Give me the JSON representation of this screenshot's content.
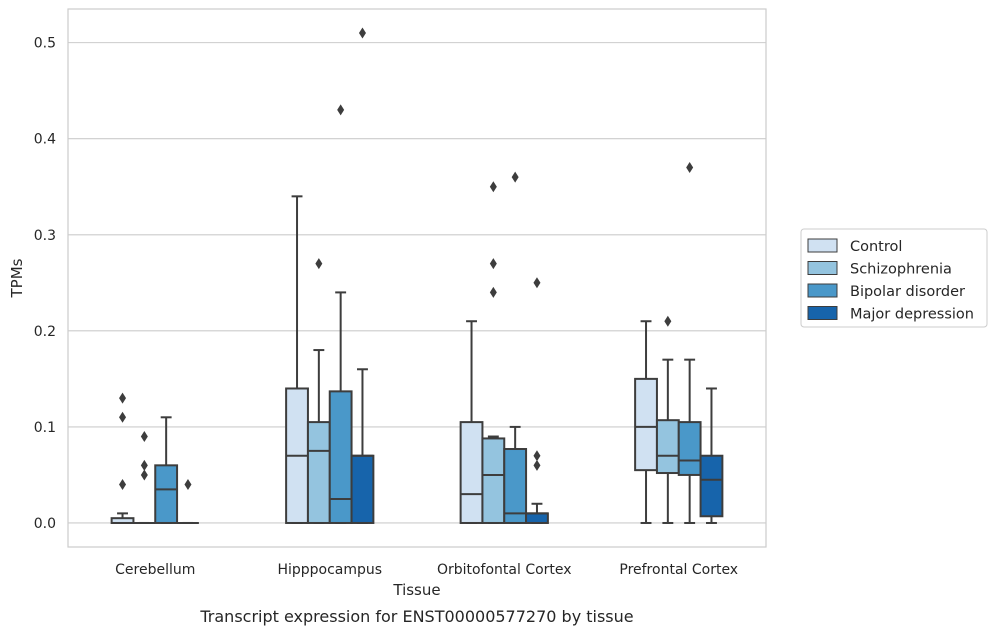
{
  "chart_data": {
    "type": "box",
    "title": "",
    "caption": "Transcript expression for ENST00000577270 by tissue",
    "xlabel": "Tissue",
    "ylabel": "TPMs",
    "ylim": [
      -0.025,
      0.535
    ],
    "yticks": [
      0.0,
      0.1,
      0.2,
      0.3,
      0.4,
      0.5
    ],
    "ytick_labels": [
      "0.0",
      "0.1",
      "0.2",
      "0.3",
      "0.4",
      "0.5"
    ],
    "grid": true,
    "legend_position": "right",
    "categories": [
      "Cerebellum",
      "Hipppocampus",
      "Orbitofontal Cortex",
      "Prefrontal Cortex"
    ],
    "series": [
      {
        "name": "Control",
        "color": "#d0e1f2",
        "boxes": [
          {
            "whislo": 0.0,
            "q1": 0.0,
            "med": 0.0,
            "q3": 0.005,
            "whishi": 0.01,
            "fliers": [
              0.04,
              0.11,
              0.13
            ]
          },
          {
            "whislo": 0.0,
            "q1": 0.0,
            "med": 0.07,
            "q3": 0.14,
            "whishi": 0.34,
            "fliers": []
          },
          {
            "whislo": 0.0,
            "q1": 0.0,
            "med": 0.03,
            "q3": 0.105,
            "whishi": 0.21,
            "fliers": []
          },
          {
            "whislo": 0.0,
            "q1": 0.055,
            "med": 0.1,
            "q3": 0.15,
            "whishi": 0.21,
            "fliers": []
          }
        ]
      },
      {
        "name": "Schizophrenia",
        "color": "#94c4df",
        "boxes": [
          {
            "whislo": 0.0,
            "q1": 0.0,
            "med": 0.0,
            "q3": 0.0,
            "whishi": 0.0,
            "fliers": [
              0.05,
              0.06,
              0.09
            ]
          },
          {
            "whislo": 0.0,
            "q1": 0.0,
            "med": 0.075,
            "q3": 0.105,
            "whishi": 0.18,
            "fliers": [
              0.27
            ]
          },
          {
            "whislo": 0.0,
            "q1": 0.0,
            "med": 0.05,
            "q3": 0.088,
            "whishi": 0.09,
            "fliers": [
              0.24,
              0.27,
              0.35
            ]
          },
          {
            "whislo": 0.0,
            "q1": 0.052,
            "med": 0.07,
            "q3": 0.107,
            "whishi": 0.17,
            "fliers": [
              0.21
            ]
          }
        ]
      },
      {
        "name": "Bipolar disorder",
        "color": "#4a98c9",
        "boxes": [
          {
            "whislo": 0.0,
            "q1": 0.0,
            "med": 0.035,
            "q3": 0.06,
            "whishi": 0.11,
            "fliers": []
          },
          {
            "whislo": 0.0,
            "q1": 0.0,
            "med": 0.025,
            "q3": 0.137,
            "whishi": 0.24,
            "fliers": [
              0.43
            ]
          },
          {
            "whislo": 0.0,
            "q1": 0.0,
            "med": 0.01,
            "q3": 0.077,
            "whishi": 0.1,
            "fliers": [
              0.36
            ]
          },
          {
            "whislo": 0.0,
            "q1": 0.05,
            "med": 0.065,
            "q3": 0.105,
            "whishi": 0.17,
            "fliers": [
              0.37
            ]
          }
        ]
      },
      {
        "name": "Major depression",
        "color": "#1764ab",
        "boxes": [
          {
            "whislo": 0.0,
            "q1": 0.0,
            "med": 0.0,
            "q3": 0.0,
            "whishi": 0.0,
            "fliers": [
              0.04
            ]
          },
          {
            "whislo": 0.0,
            "q1": 0.0,
            "med": 0.07,
            "q3": 0.07,
            "whishi": 0.16,
            "fliers": [
              0.51
            ]
          },
          {
            "whislo": 0.0,
            "q1": 0.0,
            "med": 0.01,
            "q3": 0.01,
            "whishi": 0.02,
            "fliers": [
              0.06,
              0.07,
              0.25
            ]
          },
          {
            "whislo": 0.0,
            "q1": 0.007,
            "med": 0.045,
            "q3": 0.07,
            "whishi": 0.14,
            "fliers": []
          }
        ]
      }
    ]
  }
}
